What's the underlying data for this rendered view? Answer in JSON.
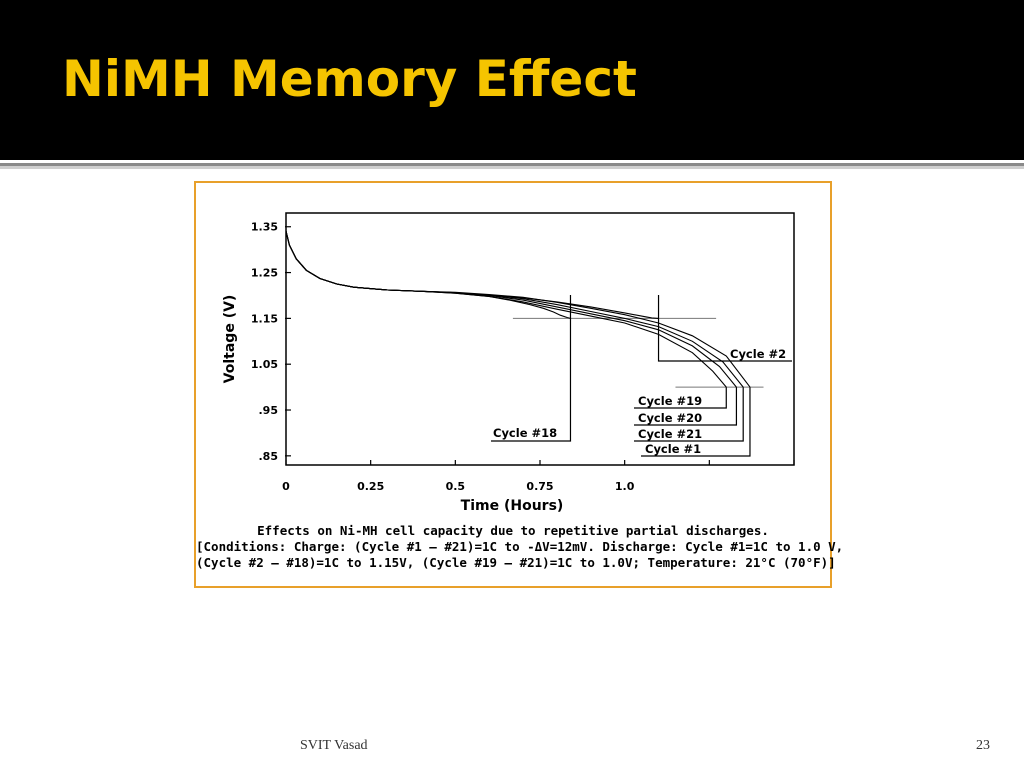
{
  "slide": {
    "title": "NiMH Memory Effect",
    "footer": "SVIT Vasad",
    "page_number": "23"
  },
  "chart_data": {
    "type": "line",
    "title": "",
    "xlabel": "Time (Hours)",
    "ylabel": "Voltage (V)",
    "xlim": [
      0,
      1.5
    ],
    "ylim": [
      0.83,
      1.38
    ],
    "x_ticks": [
      {
        "value": 0,
        "label": "0"
      },
      {
        "value": 0.25,
        "label": "0.25"
      },
      {
        "value": 0.5,
        "label": "0.5"
      },
      {
        "value": 0.75,
        "label": "0.75"
      },
      {
        "value": 1.0,
        "label": "1.0"
      }
    ],
    "y_ticks": [
      {
        "value": 1.35,
        "label": "1.35"
      },
      {
        "value": 1.25,
        "label": "1.25"
      },
      {
        "value": 1.15,
        "label": "1.15"
      },
      {
        "value": 1.05,
        "label": "1.05"
      },
      {
        "value": 0.95,
        "label": ".95"
      },
      {
        "value": 0.85,
        "label": ".85"
      }
    ],
    "reference_lines": [
      {
        "y": 1.15,
        "x_from": 0.67,
        "x_to": 1.27
      },
      {
        "y": 1.0,
        "x_from": 1.15,
        "x_to": 1.41
      }
    ],
    "series": [
      {
        "name": "Cycle #18",
        "x": [
          0,
          0.01,
          0.03,
          0.06,
          0.1,
          0.15,
          0.2,
          0.3,
          0.4,
          0.5,
          0.6,
          0.66,
          0.72,
          0.76,
          0.79,
          0.81,
          0.83,
          0.84
        ],
        "y": [
          1.34,
          1.31,
          1.28,
          1.255,
          1.237,
          1.225,
          1.218,
          1.212,
          1.209,
          1.205,
          1.198,
          1.19,
          1.18,
          1.172,
          1.164,
          1.157,
          1.152,
          1.15
        ]
      },
      {
        "name": "Cycle #2",
        "x": [
          0,
          0.01,
          0.03,
          0.06,
          0.1,
          0.15,
          0.2,
          0.3,
          0.4,
          0.5,
          0.6,
          0.7,
          0.8,
          0.9,
          1.0,
          1.05,
          1.08,
          1.1
        ],
        "y": [
          1.34,
          1.31,
          1.28,
          1.255,
          1.237,
          1.225,
          1.218,
          1.212,
          1.209,
          1.206,
          1.201,
          1.195,
          1.186,
          1.175,
          1.162,
          1.155,
          1.151,
          1.15
        ]
      },
      {
        "name": "Cycle #19",
        "x": [
          0,
          0.01,
          0.03,
          0.06,
          0.1,
          0.15,
          0.2,
          0.3,
          0.4,
          0.5,
          0.6,
          0.7,
          0.8,
          0.9,
          1.0,
          1.1,
          1.2,
          1.26,
          1.3
        ],
        "y": [
          1.34,
          1.31,
          1.28,
          1.255,
          1.237,
          1.225,
          1.218,
          1.212,
          1.209,
          1.205,
          1.198,
          1.186,
          1.17,
          1.155,
          1.14,
          1.115,
          1.075,
          1.035,
          1.0
        ]
      },
      {
        "name": "Cycle #20",
        "x": [
          0,
          0.01,
          0.03,
          0.06,
          0.1,
          0.15,
          0.2,
          0.3,
          0.4,
          0.5,
          0.6,
          0.7,
          0.8,
          0.9,
          1.0,
          1.1,
          1.2,
          1.28,
          1.33
        ],
        "y": [
          1.34,
          1.31,
          1.28,
          1.255,
          1.237,
          1.225,
          1.218,
          1.212,
          1.209,
          1.206,
          1.2,
          1.19,
          1.175,
          1.16,
          1.145,
          1.125,
          1.09,
          1.045,
          1.0
        ]
      },
      {
        "name": "Cycle #21",
        "x": [
          0,
          0.01,
          0.03,
          0.06,
          0.1,
          0.15,
          0.2,
          0.3,
          0.4,
          0.5,
          0.6,
          0.7,
          0.8,
          0.9,
          1.0,
          1.1,
          1.2,
          1.29,
          1.35
        ],
        "y": [
          1.34,
          1.31,
          1.28,
          1.255,
          1.237,
          1.225,
          1.218,
          1.212,
          1.209,
          1.206,
          1.201,
          1.193,
          1.18,
          1.165,
          1.15,
          1.132,
          1.1,
          1.055,
          1.0
        ]
      },
      {
        "name": "Cycle #1",
        "x": [
          0,
          0.01,
          0.03,
          0.06,
          0.1,
          0.15,
          0.2,
          0.3,
          0.4,
          0.5,
          0.6,
          0.7,
          0.8,
          0.9,
          1.0,
          1.1,
          1.2,
          1.3,
          1.37
        ],
        "y": [
          1.34,
          1.31,
          1.28,
          1.255,
          1.237,
          1.225,
          1.218,
          1.212,
          1.209,
          1.207,
          1.202,
          1.196,
          1.185,
          1.172,
          1.158,
          1.14,
          1.112,
          1.068,
          1.0
        ]
      }
    ],
    "caption": [
      "Effects on Ni-MH cell capacity due to repetitive partial discharges.",
      "[Conditions: Charge: (Cycle #1 – #21)=1C to -ΔV=12mV. Discharge: Cycle #1=1C to 1.0 V,",
      "(Cycle #2 – #18)=1C to 1.15V, (Cycle #19 – #21)=1C to 1.0V; Temperature: 21°C (70°F)]"
    ],
    "grid": false,
    "legend": "callout labels"
  }
}
